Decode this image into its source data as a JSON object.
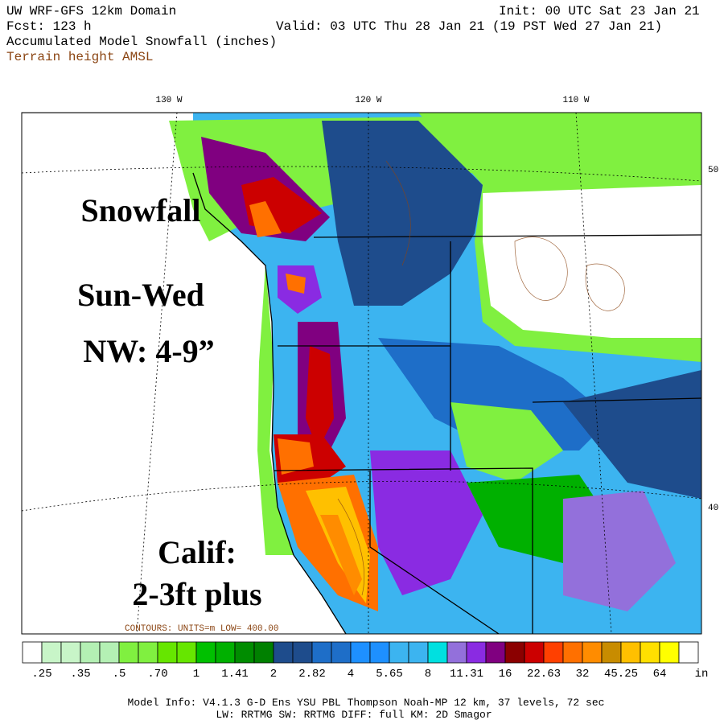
{
  "header": {
    "title": "UW WRF-GFS 12km Domain",
    "init": "Init: 00 UTC Sat 23 Jan 21",
    "forecast": "Fcst:  123 h",
    "valid": "Valid: 03 UTC Thu 28 Jan 21 (19 PST Wed 27 Jan 21)",
    "field": "Accumulated Model Snowfall (inches)",
    "contour_field": "Terrain height AMSL"
  },
  "map": {
    "longitude_labels": [
      "130 W",
      "120 W",
      "110 W"
    ],
    "latitude_labels": [
      "50",
      "40"
    ],
    "contour_info": "CONTOURS:  UNITS=m   LOW=  400.00",
    "annotations": [
      "Snowfall",
      "Sun-Wed",
      "NW: 4-9”",
      "Calif:",
      "2-3ft plus"
    ]
  },
  "colorbar": {
    "labels": [
      ".25",
      ".35",
      ".5",
      ".70",
      "1",
      "1.41",
      "2",
      "2.82",
      "4",
      "5.65",
      "8",
      "11.31",
      "16",
      "22.63",
      "32",
      "45.25",
      "64"
    ],
    "unit": "in",
    "colors": [
      "#ffffff",
      "#c8f5c8",
      "#c8f5c8",
      "#b4f0b4",
      "#b4f0b4",
      "#80f040",
      "#80f040",
      "#66e600",
      "#66e600",
      "#00c000",
      "#00b000",
      "#008c00",
      "#008000",
      "#1e4c8c",
      "#1e4c8c",
      "#1e6ec8",
      "#1e6ec8",
      "#1e90ff",
      "#1e90ff",
      "#3cb4f0",
      "#3cb4f0",
      "#00e0e0",
      "#9370db",
      "#8a2be2",
      "#800080",
      "#8b0000",
      "#cc0000",
      "#ff4000",
      "#ff7000",
      "#ff8c00",
      "#c88c00",
      "#ffc000",
      "#ffe000",
      "#ffff00",
      "#ffffff"
    ]
  },
  "footer": {
    "line1": "Model Info: V4.1.3    G-D Ens YSU PBL  Thompson    Noah-MP   12 km,   37 levels,   72 sec",
    "line2": "LW: RRTMG SW: RRTMG    DIFF: full    KM: 2D Smagor"
  }
}
